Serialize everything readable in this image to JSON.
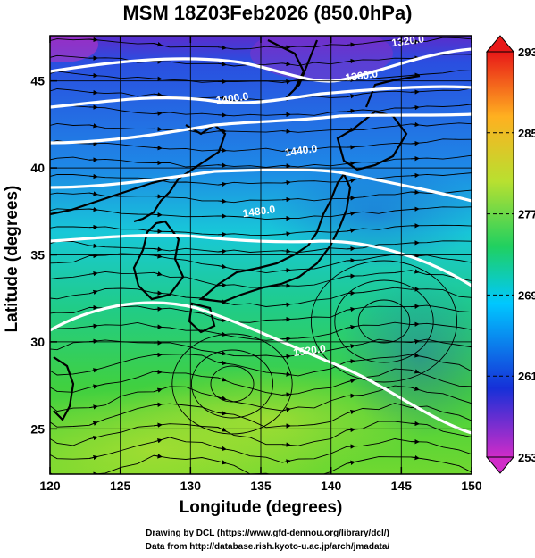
{
  "title": "MSM 18Z03Feb2026 (850.0hPa)",
  "x_axis": {
    "label": "Longitude (degrees)",
    "ticks": [
      {
        "value": 120,
        "label": "120"
      },
      {
        "value": 125,
        "label": "125"
      },
      {
        "value": 130,
        "label": "130"
      },
      {
        "value": 135,
        "label": "135"
      },
      {
        "value": 140,
        "label": "140"
      },
      {
        "value": 145,
        "label": "145"
      },
      {
        "value": 150,
        "label": "150"
      }
    ],
    "range": [
      120,
      150
    ]
  },
  "y_axis": {
    "label": "Latitude  (degrees)",
    "ticks": [
      {
        "value": 25,
        "label": "25"
      },
      {
        "value": 30,
        "label": "30"
      },
      {
        "value": 35,
        "label": "35"
      },
      {
        "value": 40,
        "label": "40"
      },
      {
        "value": 45,
        "label": "45"
      }
    ],
    "range": [
      22.4,
      47.6
    ]
  },
  "colorbar": {
    "min": 253,
    "max": 293,
    "labels": [
      {
        "value": 293,
        "label": "293"
      },
      {
        "value": 285,
        "label": "285"
      },
      {
        "value": 277,
        "label": "277"
      },
      {
        "value": 269,
        "label": "269"
      },
      {
        "value": 261,
        "label": "261"
      },
      {
        "value": 253,
        "label": "253"
      }
    ],
    "colors": [
      "#d02cc8",
      "#1630d8",
      "#00c8ff",
      "#20d060",
      "#b8e030",
      "#ffb020",
      "#e81818"
    ]
  },
  "contours": [
    {
      "label": "1320.0",
      "lon": 145.5,
      "lat": 47.1
    },
    {
      "label": "1360.0",
      "lon": 142.2,
      "lat": 45.1
    },
    {
      "label": "1400.0",
      "lon": 133.0,
      "lat": 43.8
    },
    {
      "label": "1440.0",
      "lon": 137.9,
      "lat": 40.8
    },
    {
      "label": "1480.0",
      "lon": 134.9,
      "lat": 37.3
    },
    {
      "label": "1520.0",
      "lon": 138.5,
      "lat": 29.3
    }
  ],
  "credits": {
    "line1": "Drawing by DCL (https://www.gfd-dennou.org/library/dcl/)",
    "line2": "Data from http://database.rish.kyoto-u.ac.jp/arch/jmadata/"
  }
}
